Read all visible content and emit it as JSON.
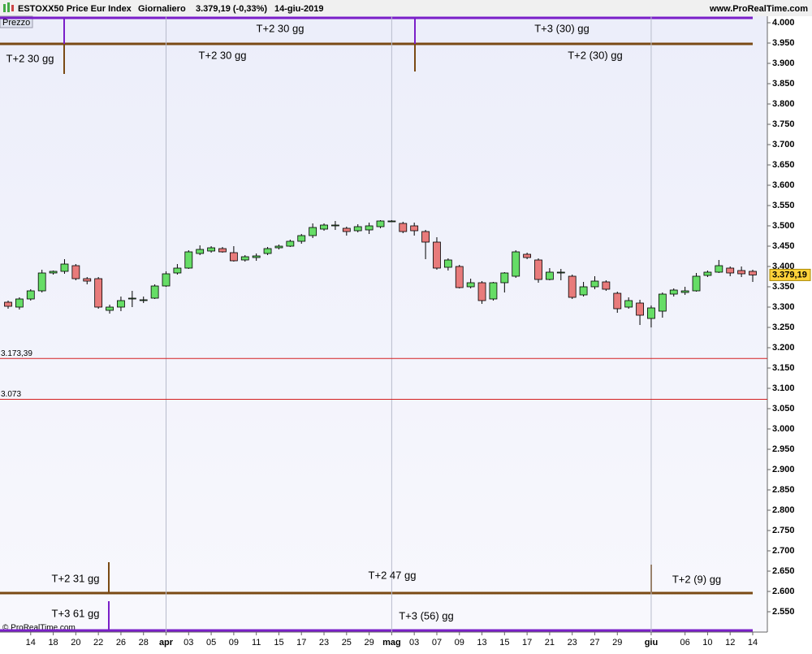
{
  "chart_data": {
    "type": "candlestick",
    "title": "ESTOXX50 Price Eur Index",
    "period": "Giornaliero",
    "quote": "3.379,19 (-0,33%)",
    "date": "14-giu-2019",
    "site": "www.ProRealTime.com",
    "panel_label": "Prezzo",
    "copyright": "© ProRealTime.com",
    "up_color": "#66dd66",
    "down_color": "#e87b7b",
    "categories": [
      null,
      null,
      "14",
      null,
      "18",
      null,
      "20",
      null,
      "22",
      null,
      "26",
      null,
      "28",
      null,
      "apr",
      null,
      "03",
      null,
      "05",
      null,
      "09",
      null,
      "11",
      null,
      "15",
      null,
      "17",
      null,
      "23",
      null,
      "25",
      null,
      "29",
      null,
      "mag",
      null,
      "03",
      null,
      "07",
      null,
      "09",
      null,
      "13",
      null,
      "15",
      null,
      "17",
      null,
      "21",
      null,
      "23",
      null,
      "27",
      null,
      "29",
      null,
      null,
      "giu",
      null,
      null,
      "06",
      null,
      "10",
      null,
      "12",
      null,
      "14"
    ],
    "open": [
      3312,
      3300,
      3320,
      3340,
      3384,
      3388,
      3402,
      3370,
      3370,
      3292,
      3300,
      3320,
      3316,
      3322,
      3352,
      3384,
      3396,
      3432,
      3438,
      3444,
      3434,
      3416,
      3422,
      3432,
      3446,
      3450,
      3462,
      3476,
      3492,
      3500,
      3494,
      3488,
      3490,
      3498,
      3512,
      3506,
      3500,
      3486,
      3460,
      3398,
      3400,
      3350,
      3360,
      3320,
      3360,
      3376,
      3430,
      3416,
      3368,
      3384,
      3376,
      3330,
      3350,
      3362,
      3334,
      3300,
      3310,
      3272,
      3290,
      3332,
      3336,
      3340,
      3378,
      3386,
      3396,
      3390,
      3388
    ],
    "high": [
      3316,
      3324,
      3344,
      3392,
      3390,
      3418,
      3406,
      3374,
      3374,
      3306,
      3326,
      3340,
      3326,
      3356,
      3388,
      3406,
      3440,
      3452,
      3450,
      3448,
      3450,
      3428,
      3432,
      3448,
      3454,
      3466,
      3480,
      3506,
      3506,
      3512,
      3498,
      3504,
      3508,
      3514,
      3514,
      3510,
      3508,
      3490,
      3472,
      3420,
      3404,
      3370,
      3364,
      3362,
      3386,
      3440,
      3434,
      3420,
      3396,
      3394,
      3380,
      3362,
      3376,
      3366,
      3338,
      3324,
      3318,
      3304,
      3336,
      3346,
      3350,
      3384,
      3390,
      3416,
      3400,
      3400,
      3392
    ],
    "low": [
      3296,
      3294,
      3316,
      3336,
      3380,
      3382,
      3366,
      3356,
      3296,
      3284,
      3290,
      3300,
      3310,
      3320,
      3350,
      3380,
      3394,
      3428,
      3434,
      3434,
      3412,
      3412,
      3414,
      3428,
      3442,
      3448,
      3456,
      3470,
      3488,
      3490,
      3476,
      3484,
      3480,
      3494,
      3510,
      3482,
      3476,
      3418,
      3392,
      3390,
      3346,
      3346,
      3308,
      3316,
      3336,
      3372,
      3418,
      3360,
      3366,
      3366,
      3320,
      3326,
      3344,
      3340,
      3286,
      3296,
      3256,
      3250,
      3274,
      3326,
      3330,
      3338,
      3374,
      3384,
      3376,
      3374,
      3362
    ],
    "close": [
      3302,
      3320,
      3340,
      3384,
      3388,
      3406,
      3370,
      3364,
      3300,
      3300,
      3316,
      3322,
      3318,
      3352,
      3382,
      3396,
      3436,
      3442,
      3446,
      3436,
      3414,
      3424,
      3426,
      3444,
      3450,
      3462,
      3476,
      3496,
      3502,
      3502,
      3486,
      3498,
      3500,
      3512,
      3512,
      3486,
      3488,
      3460,
      3396,
      3416,
      3348,
      3360,
      3316,
      3360,
      3384,
      3436,
      3422,
      3368,
      3386,
      3386,
      3324,
      3350,
      3364,
      3344,
      3296,
      3316,
      3280,
      3298,
      3332,
      3342,
      3340,
      3376,
      3386,
      3402,
      3384,
      3382,
      3379.19
    ],
    "last_price": {
      "value": 3379.19,
      "label": "3.379,19"
    },
    "hlines": [
      {
        "value": 3173.39,
        "label": "3.173,39",
        "color": "#d42020"
      },
      {
        "value": 3073,
        "label": "3.073",
        "color": "#d42020"
      }
    ],
    "annotations": [
      "T+2 30 gg",
      "T+2 30 gg",
      "T+2 30 gg",
      "T+3 (30) gg",
      "T+2 (30) gg",
      "T+2 31 gg",
      "T+2 47 gg",
      "T+2 (9) gg",
      "T+3 61 gg",
      "T+3 (56) gg"
    ],
    "ylim": [
      2500,
      4016
    ],
    "yticks": [
      {
        "value": 4000,
        "label": "4.000"
      },
      {
        "value": 3950,
        "label": "3.950"
      },
      {
        "value": 3900,
        "label": "3.900"
      },
      {
        "value": 3850,
        "label": "3.850"
      },
      {
        "value": 3800,
        "label": "3.800"
      },
      {
        "value": 3750,
        "label": "3.750"
      },
      {
        "value": 3700,
        "label": "3.700"
      },
      {
        "value": 3650,
        "label": "3.650"
      },
      {
        "value": 3600,
        "label": "3.600"
      },
      {
        "value": 3550,
        "label": "3.550"
      },
      {
        "value": 3500,
        "label": "3.500"
      },
      {
        "value": 3450,
        "label": "3.450"
      },
      {
        "value": 3400,
        "label": "3.400"
      },
      {
        "value": 3350,
        "label": "3.350"
      },
      {
        "value": 3300,
        "label": "3.300"
      },
      {
        "value": 3250,
        "label": "3.250"
      },
      {
        "value": 3200,
        "label": "3.200"
      },
      {
        "value": 3150,
        "label": "3.150"
      },
      {
        "value": 3100,
        "label": "3.100"
      },
      {
        "value": 3050,
        "label": "3.050"
      },
      {
        "value": 3000,
        "label": "3.000"
      },
      {
        "value": 2950,
        "label": "2.950"
      },
      {
        "value": 2900,
        "label": "2.900"
      },
      {
        "value": 2850,
        "label": "2.850"
      },
      {
        "value": 2800,
        "label": "2.800"
      },
      {
        "value": 2750,
        "label": "2.750"
      },
      {
        "value": 2700,
        "label": "2.700"
      },
      {
        "value": 2650,
        "label": "2.650"
      },
      {
        "value": 2600,
        "label": "2.600"
      },
      {
        "value": 2550,
        "label": "2.550"
      }
    ],
    "month_grid": true
  }
}
